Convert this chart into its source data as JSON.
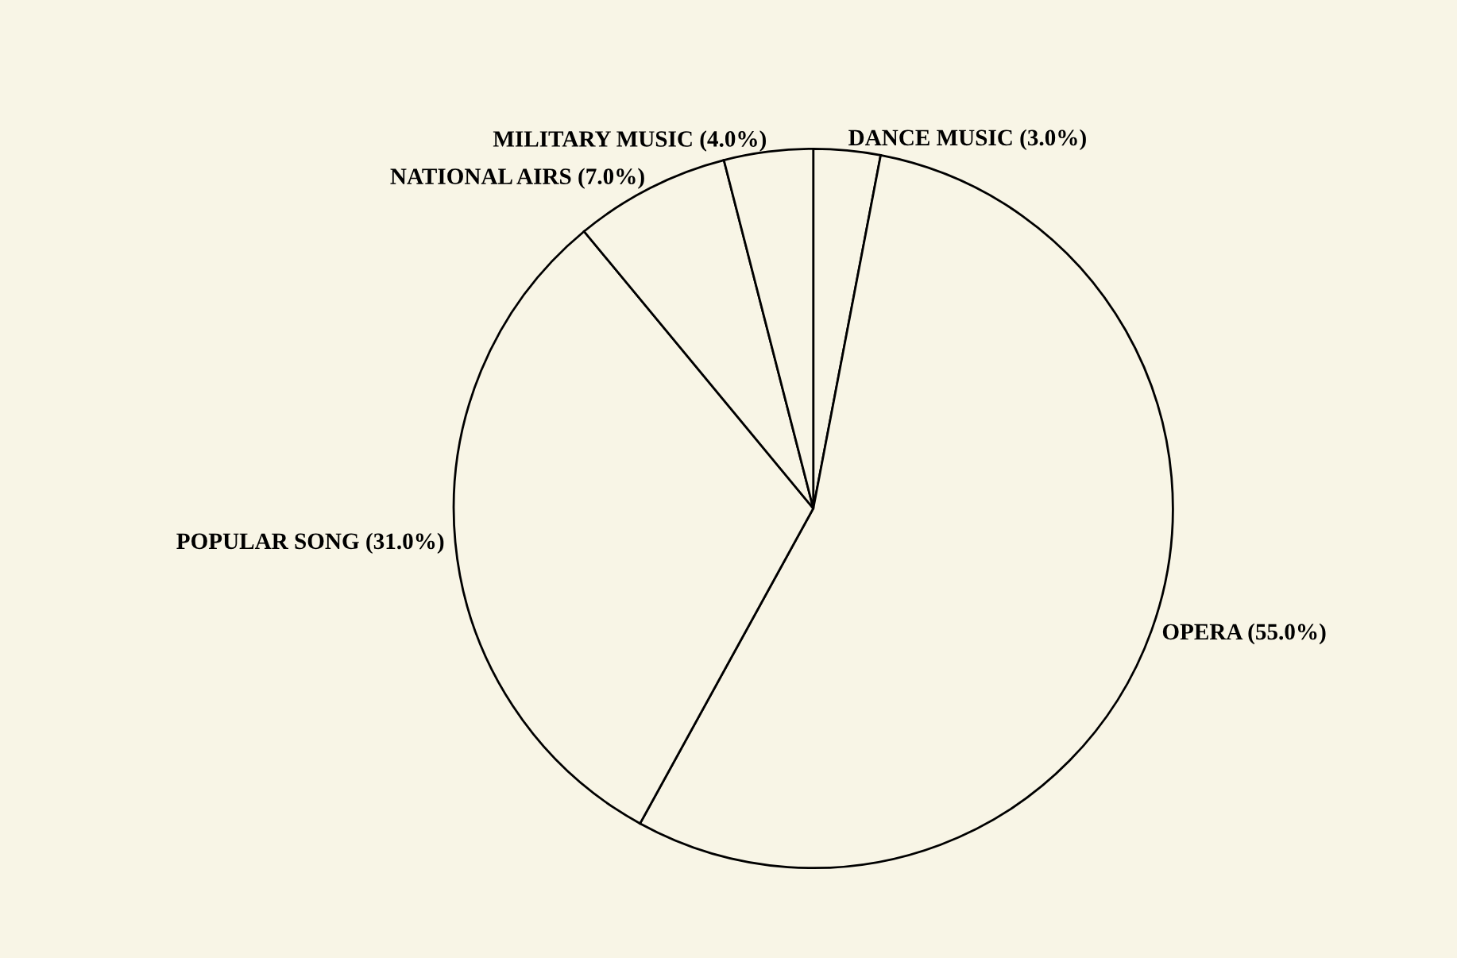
{
  "chart_data": {
    "type": "pie",
    "categories": [
      "DANCE MUSIC (3.0%)",
      "OPERA (55.0%)",
      "POPULAR SONG (31.0%)",
      "NATIONAL AIRS (7.0%)",
      "MILITARY MUSIC (4.0%)"
    ],
    "values": [
      3,
      55,
      31,
      7,
      4
    ],
    "colors": [
      "#f8f5e6",
      "#f8f5e6",
      "#f8f5e6",
      "#f8f5e6",
      "#f8f5e6"
    ]
  }
}
